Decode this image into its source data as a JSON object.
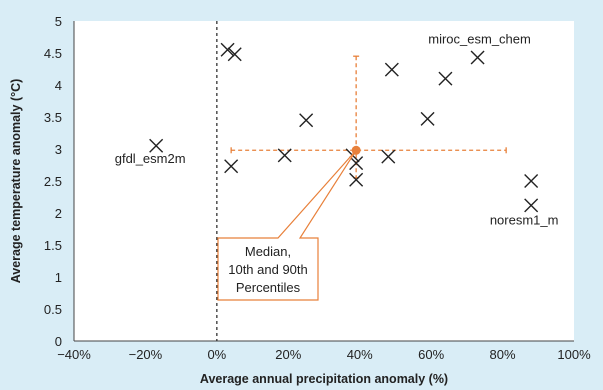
{
  "chart_data": {
    "type": "scatter",
    "xlabel": "Average annual precipitation anomaly (%)",
    "ylabel": "Average temperature anomaly (°C)",
    "xlim": [
      -40,
      100
    ],
    "ylim": [
      0,
      5
    ],
    "x_ticks": [
      "−40%",
      "−20%",
      "0%",
      "20%",
      "40%",
      "60%",
      "80%",
      "100%"
    ],
    "y_ticks": [
      "0",
      "0.5",
      "1",
      "1.5",
      "2",
      "2.5",
      "3",
      "3.5",
      "4",
      "4.5",
      "5"
    ],
    "points": [
      {
        "x": -17,
        "y": 3.05,
        "label": "gfdl_esm2m"
      },
      {
        "x": 3,
        "y": 4.55,
        "label": ""
      },
      {
        "x": 5,
        "y": 4.48,
        "label": ""
      },
      {
        "x": 4,
        "y": 2.73,
        "label": ""
      },
      {
        "x": 19,
        "y": 2.9,
        "label": ""
      },
      {
        "x": 25,
        "y": 3.45,
        "label": ""
      },
      {
        "x": 38,
        "y": 2.9,
        "label": ""
      },
      {
        "x": 39,
        "y": 2.78,
        "label": ""
      },
      {
        "x": 39,
        "y": 2.52,
        "label": ""
      },
      {
        "x": 48,
        "y": 2.88,
        "label": ""
      },
      {
        "x": 49,
        "y": 4.24,
        "label": ""
      },
      {
        "x": 59,
        "y": 3.47,
        "label": ""
      },
      {
        "x": 64,
        "y": 4.1,
        "label": ""
      },
      {
        "x": 73,
        "y": 4.43,
        "label": "miroc_esm_chem"
      },
      {
        "x": 88,
        "y": 2.5,
        "label": ""
      },
      {
        "x": 88,
        "y": 2.12,
        "label": "noresm1_m"
      }
    ],
    "median": {
      "x": 39,
      "y": 2.98
    },
    "percentiles": {
      "x10": 4,
      "x90": 81,
      "y10": 2.55,
      "y90": 4.45
    },
    "reference_line_x": 0,
    "callout": [
      "Median,",
      "10th and 90th",
      "Percentiles"
    ],
    "colors": {
      "background": "#d9edf6",
      "plot_area": "#ffffff",
      "accent": "#e8803a",
      "marker": "#222222"
    },
    "grid": false
  }
}
